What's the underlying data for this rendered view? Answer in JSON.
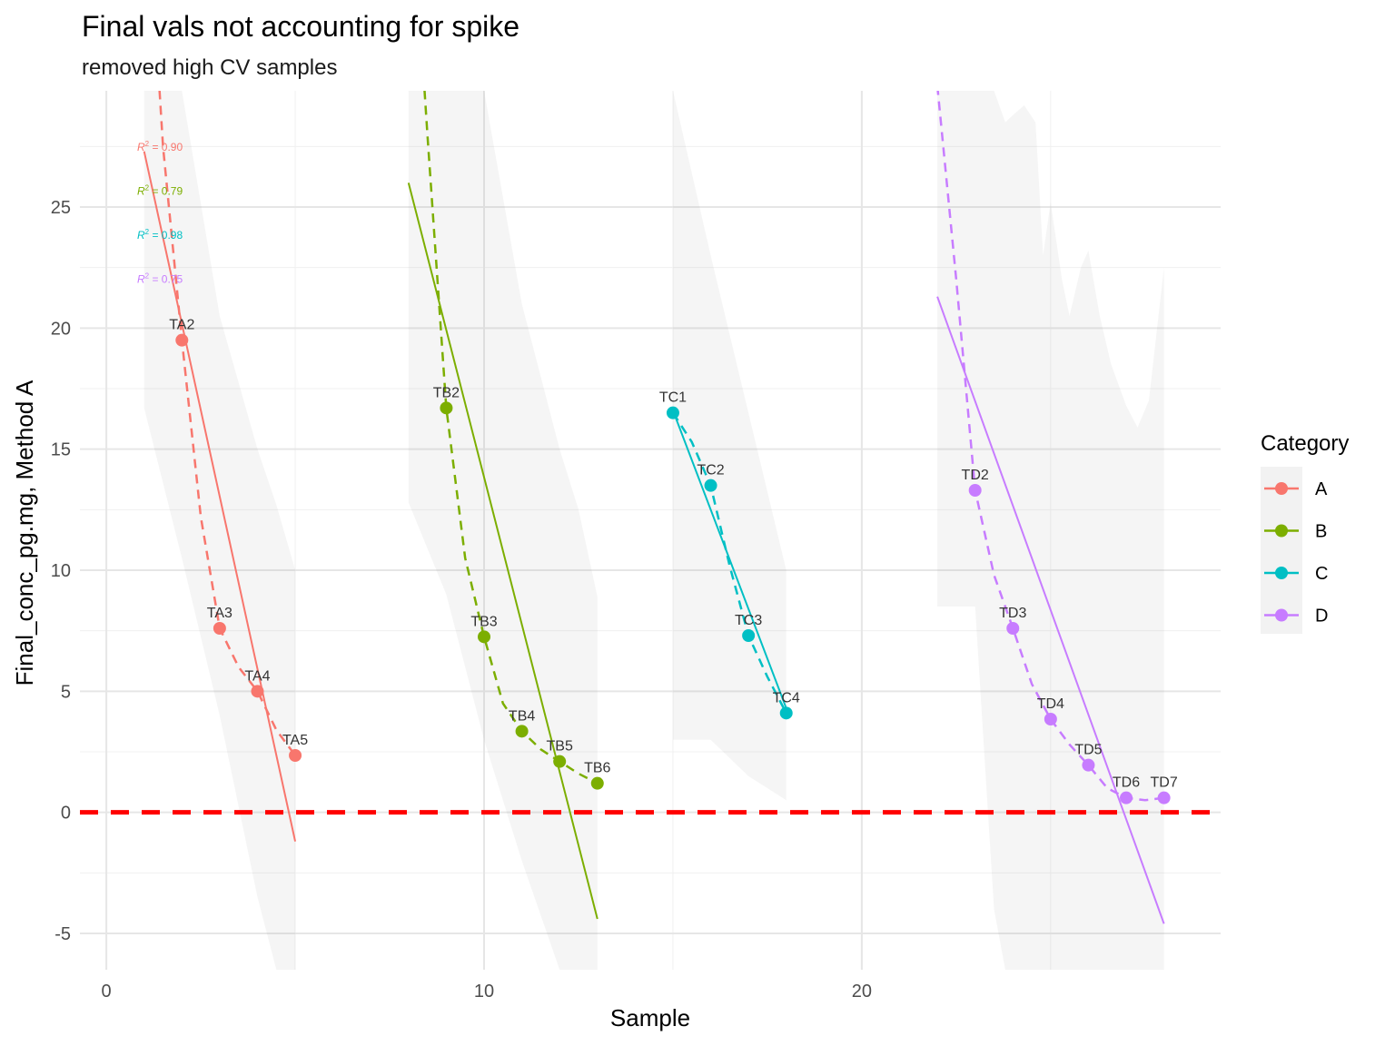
{
  "chart_data": {
    "type": "line",
    "title": "Final vals not accounting for spike",
    "subtitle": "removed high CV samples",
    "xlabel": "Sample",
    "ylabel": "Final_conc_pg.mg, Method A",
    "xlim": [
      -0.7,
      29.5
    ],
    "ylim": [
      -6.5,
      29.8
    ],
    "x_ticks": [
      0,
      10,
      20
    ],
    "y_ticks": [
      -5,
      0,
      5,
      10,
      15,
      20,
      25
    ],
    "grid": true,
    "reference_line": {
      "y": 0,
      "color": "#FF0000",
      "style": "dashed"
    },
    "legend": {
      "title": "Category",
      "position": "right"
    },
    "series": [
      {
        "name": "A",
        "color": "#F8766D",
        "r2": "= 0.90",
        "points": [
          {
            "label": "TA2",
            "x": 2,
            "y": 19.5
          },
          {
            "label": "TA3",
            "x": 3,
            "y": 7.6
          },
          {
            "label": "TA4",
            "x": 4,
            "y": 5.0
          },
          {
            "label": "TA5",
            "x": 5,
            "y": 2.35
          }
        ],
        "fit": {
          "x": [
            1,
            5
          ],
          "y": [
            27.3,
            -1.2
          ]
        },
        "smooth": {
          "x": [
            1.0,
            1.5,
            2.0,
            2.5,
            3.0,
            3.5,
            4.0,
            4.5,
            5.0
          ],
          "y": [
            40.0,
            27.5,
            19.5,
            12.2,
            7.6,
            6.0,
            5.0,
            3.4,
            2.35
          ]
        },
        "band": {
          "x": [
            1,
            2,
            3,
            4,
            4.5,
            5
          ],
          "upper": [
            29.8,
            29.8,
            20.5,
            15.0,
            12.7,
            10.0
          ],
          "lower": [
            16.7,
            10.5,
            4.0,
            -3.5,
            -6.5,
            -6.5
          ]
        }
      },
      {
        "name": "B",
        "color": "#7CAE00",
        "r2": "= 0.79",
        "points": [
          {
            "label": "TB2",
            "x": 9,
            "y": 16.7
          },
          {
            "label": "TB3",
            "x": 10,
            "y": 7.25
          },
          {
            "label": "TB4",
            "x": 11,
            "y": 3.35
          },
          {
            "label": "TB5",
            "x": 12,
            "y": 2.1
          },
          {
            "label": "TB6",
            "x": 13,
            "y": 1.2
          }
        ],
        "fit": {
          "x": [
            8,
            13
          ],
          "y": [
            26.0,
            -4.4
          ]
        },
        "smooth": {
          "x": [
            8.0,
            8.5,
            9.0,
            9.5,
            10.0,
            10.5,
            11.0,
            11.5,
            12.0,
            12.5,
            13.0
          ],
          "y": [
            40.0,
            28.0,
            16.7,
            10.5,
            7.25,
            4.5,
            3.35,
            2.6,
            2.1,
            1.6,
            1.2
          ]
        },
        "band": {
          "x": [
            8,
            9,
            10,
            11,
            12,
            12.5,
            13
          ],
          "upper": [
            29.8,
            29.8,
            29.8,
            21.0,
            15.0,
            12.5,
            8.9
          ],
          "lower": [
            12.8,
            9.0,
            3.0,
            -2.0,
            -6.5,
            -6.5,
            -6.5
          ]
        }
      },
      {
        "name": "C",
        "color": "#00BFC4",
        "r2": "= 0.98",
        "points": [
          {
            "label": "TC1",
            "x": 15,
            "y": 16.5
          },
          {
            "label": "TC2",
            "x": 16,
            "y": 13.5
          },
          {
            "label": "TC3",
            "x": 17,
            "y": 7.3
          },
          {
            "label": "TC4",
            "x": 18,
            "y": 4.1
          }
        ],
        "fit": {
          "x": [
            15,
            18
          ],
          "y": [
            16.6,
            4.3
          ]
        },
        "smooth": {
          "x": [
            15.0,
            15.5,
            16.0,
            16.5,
            17.0,
            17.5,
            18.0
          ],
          "y": [
            16.5,
            15.3,
            13.5,
            10.2,
            7.3,
            5.6,
            4.1
          ]
        },
        "band": {
          "x": [
            15,
            16,
            17,
            18
          ],
          "upper": [
            29.8,
            23.0,
            16.5,
            10.0
          ],
          "lower": [
            3.0,
            3.0,
            1.5,
            0.5
          ]
        }
      },
      {
        "name": "D",
        "color": "#C77CFF",
        "r2": "= 0.75",
        "points": [
          {
            "label": "TD2",
            "x": 23,
            "y": 13.3
          },
          {
            "label": "TD3",
            "x": 24,
            "y": 7.6
          },
          {
            "label": "TD4",
            "x": 25,
            "y": 3.85
          },
          {
            "label": "TD5",
            "x": 26,
            "y": 1.95
          },
          {
            "label": "TD6",
            "x": 27,
            "y": 0.6
          },
          {
            "label": "TD7",
            "x": 28,
            "y": 0.6
          }
        ],
        "fit": {
          "x": [
            22,
            28
          ],
          "y": [
            21.3,
            -4.6
          ]
        },
        "smooth": {
          "x": [
            22.0,
            22.5,
            23.0,
            23.5,
            24.0,
            24.5,
            25.0,
            25.5,
            26.0,
            26.5,
            27.0,
            27.5,
            28.0
          ],
          "y": [
            30.0,
            22.0,
            13.3,
            9.8,
            7.6,
            5.3,
            3.85,
            2.8,
            1.95,
            1.0,
            0.6,
            0.5,
            0.6
          ]
        },
        "band": {
          "x": [
            22,
            23,
            23.5,
            23.8,
            24,
            24.3,
            24.6,
            24.8,
            25,
            25.3,
            25.5,
            25.8,
            26,
            26.3,
            26.6,
            27,
            27.3,
            27.6,
            28
          ],
          "upper": [
            29.8,
            29.8,
            29.8,
            28.5,
            28.8,
            29.2,
            28.5,
            23.0,
            25.2,
            22.0,
            20.5,
            22.5,
            23.2,
            20.5,
            18.5,
            16.8,
            15.9,
            17.0,
            22.5
          ],
          "lower": [
            8.5,
            8.5,
            -4.0,
            -6.5,
            -6.5,
            -6.5,
            -6.5,
            -6.5,
            -6.5,
            -6.5,
            -6.5,
            -6.5,
            -6.5,
            -6.5,
            -6.5,
            -6.5,
            -6.5,
            -6.5,
            -6.5
          ]
        }
      }
    ]
  }
}
